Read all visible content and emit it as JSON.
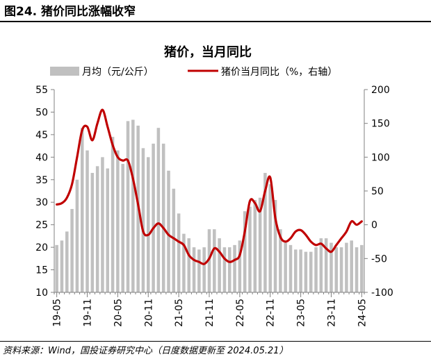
{
  "header": {
    "figure_title": "图24. 猪价同比涨幅收窄"
  },
  "footer": {
    "source": "资料来源：Wind，国投证券研究中心（日度数据更新至 2024.05.21）"
  },
  "colors": {
    "bar": "#c0c0c0",
    "line": "#c00000",
    "axis": "#808080"
  },
  "chart_data": {
    "type": "bar",
    "title": "猪价，当月同比",
    "legend": [
      "月均（元/公斤）",
      "猪价当月同比（%，右轴）"
    ],
    "legend_position": "top",
    "x_tick_labels": [
      "19-05",
      "19-11",
      "20-05",
      "20-11",
      "21-05",
      "21-11",
      "22-05",
      "22-11",
      "23-05",
      "23-11",
      "24-05"
    ],
    "y_left": {
      "min": 10,
      "max": 55,
      "ticks": [
        10,
        15,
        20,
        25,
        30,
        35,
        40,
        45,
        50,
        55
      ]
    },
    "y_right": {
      "min": -100,
      "max": 200,
      "ticks": [
        -100,
        -50,
        0,
        50,
        100,
        150,
        200
      ]
    },
    "categories": [
      "19-05",
      "19-06",
      "19-07",
      "19-08",
      "19-09",
      "19-10",
      "19-11",
      "19-12",
      "20-01",
      "20-02",
      "20-03",
      "20-04",
      "20-05",
      "20-06",
      "20-07",
      "20-08",
      "20-09",
      "20-10",
      "20-11",
      "20-12",
      "21-01",
      "21-02",
      "21-03",
      "21-04",
      "21-05",
      "21-06",
      "21-07",
      "21-08",
      "21-09",
      "21-10",
      "21-11",
      "21-12",
      "22-01",
      "22-02",
      "22-03",
      "22-04",
      "22-05",
      "22-06",
      "22-07",
      "22-08",
      "22-09",
      "22-10",
      "22-11",
      "22-12",
      "23-01",
      "23-02",
      "23-03",
      "23-04",
      "23-05",
      "23-06",
      "23-07",
      "23-08",
      "23-09",
      "23-10",
      "23-11",
      "23-12",
      "24-01",
      "24-02",
      "24-03",
      "24-04",
      "24-05"
    ],
    "series": [
      {
        "name": "月均（元/公斤）",
        "axis": "left",
        "type": "bar",
        "values": [
          20.5,
          21.5,
          23.5,
          28.5,
          35.0,
          46.5,
          41.5,
          36.5,
          38.0,
          40.0,
          37.5,
          44.5,
          41.5,
          38.5,
          48.0,
          48.3,
          47.0,
          42.0,
          40.0,
          43.0,
          46.5,
          43.0,
          37.0,
          33.0,
          27.5,
          23.0,
          22.0,
          20.0,
          19.5,
          20.0,
          24.0,
          24.0,
          22.0,
          20.0,
          20.0,
          20.5,
          21.5,
          28.0,
          29.0,
          30.5,
          31.0,
          36.5,
          34.0,
          30.5,
          24.0,
          21.0,
          20.5,
          19.5,
          19.5,
          19.0,
          19.0,
          20.0,
          22.0,
          22.0,
          21.0,
          20.0,
          20.0,
          21.0,
          21.5,
          20.0,
          20.5
        ]
      },
      {
        "name": "猪价当月同比（%，右轴）",
        "axis": "right",
        "type": "line",
        "values": [
          30,
          32,
          40,
          60,
          100,
          140,
          145,
          125,
          150,
          170,
          145,
          118,
          100,
          95,
          95,
          68,
          30,
          -10,
          -15,
          -5,
          2,
          -5,
          -15,
          -20,
          -25,
          -30,
          -45,
          -52,
          -55,
          -58,
          -50,
          -35,
          -40,
          -50,
          -55,
          -52,
          -45,
          -10,
          35,
          32,
          20,
          50,
          70,
          10,
          -18,
          -25,
          -20,
          -10,
          -8,
          -15,
          -25,
          -30,
          -28,
          -35,
          -40,
          -30,
          -20,
          -10,
          5,
          0,
          5
        ]
      }
    ]
  }
}
